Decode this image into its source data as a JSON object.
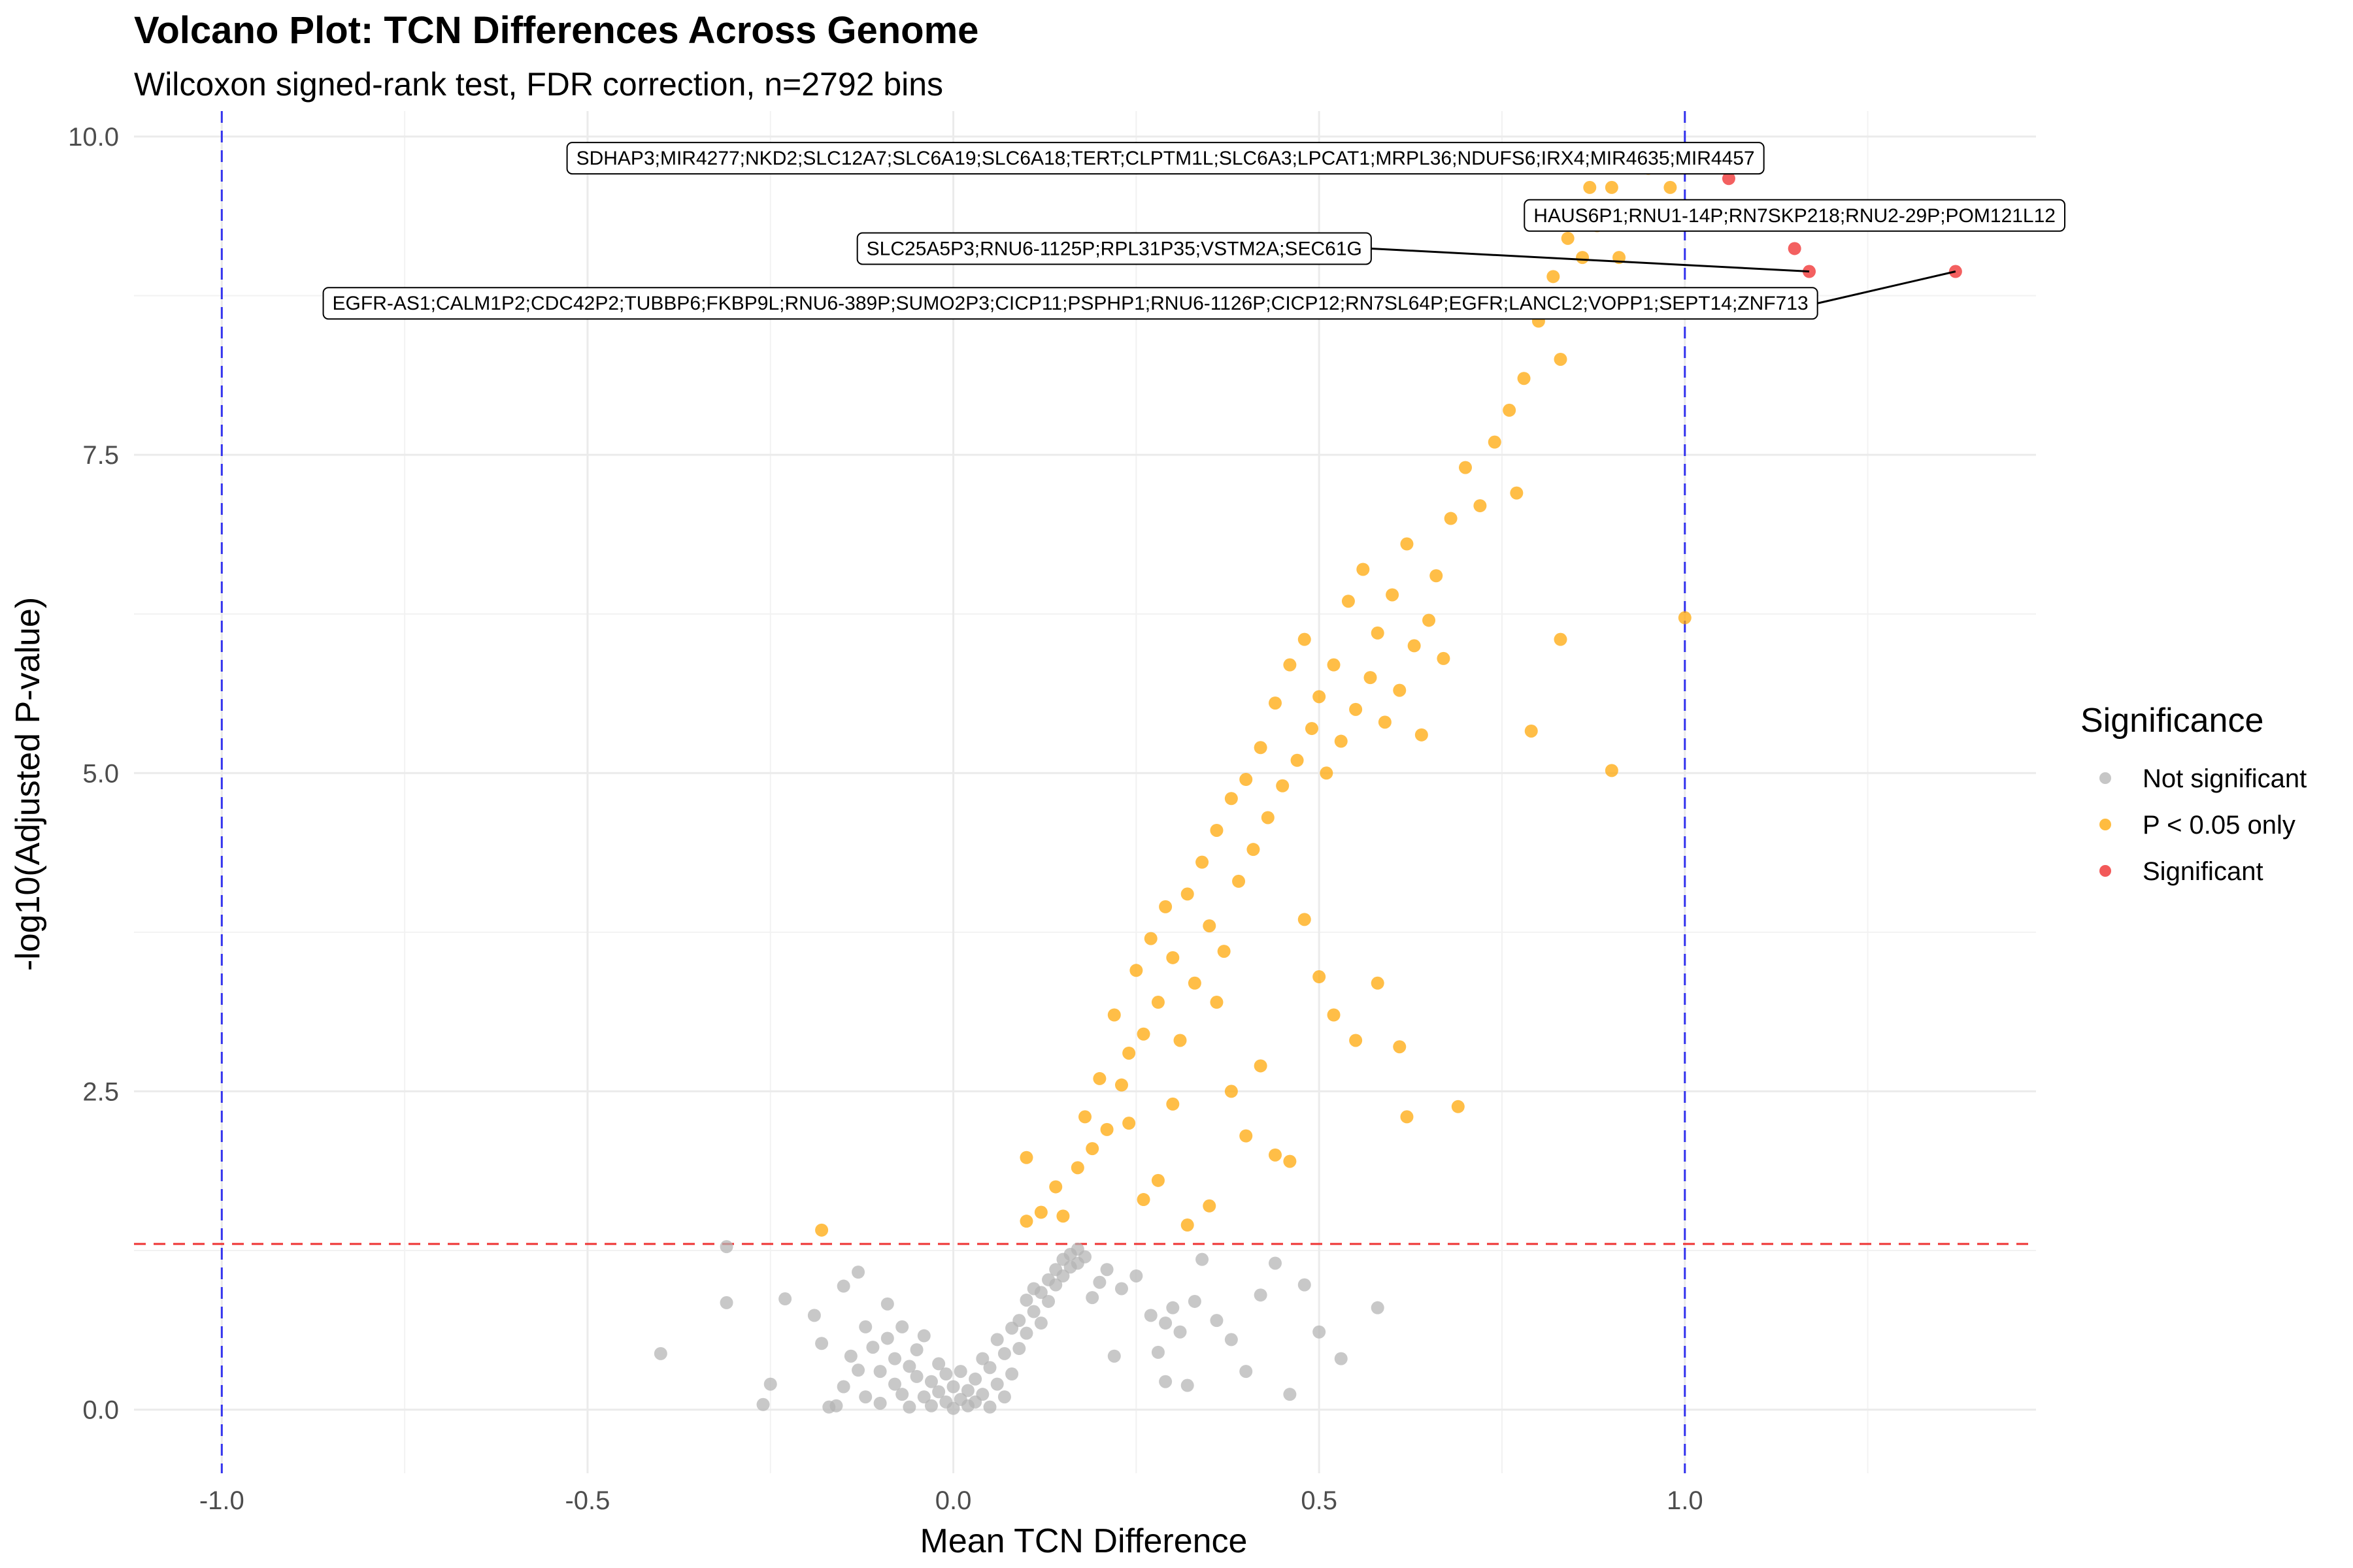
{
  "chart_data": {
    "type": "scatter",
    "title": "Volcano Plot: TCN Differences Across Genome",
    "subtitle": "Wilcoxon signed-rank test, FDR correction, n=2792 bins",
    "xlabel": "Mean TCN Difference",
    "ylabel": "-log10(Adjusted P-value)",
    "xlim": [
      -1.12,
      1.48
    ],
    "ylim": [
      -0.5,
      10.2
    ],
    "x_ticks": [
      "-1.0",
      "-0.5",
      "0.0",
      "0.5",
      "1.0"
    ],
    "x_tick_values": [
      -1.0,
      -0.5,
      0.0,
      0.5,
      1.0
    ],
    "y_ticks": [
      "0.0",
      "2.5",
      "5.0",
      "7.5",
      "10.0"
    ],
    "y_tick_values": [
      0,
      2.5,
      5.0,
      7.5,
      10.0
    ],
    "grid": true,
    "reference_lines": [
      {
        "axis": "x",
        "value": -1.0,
        "color": "#3333ee",
        "style": "dashed"
      },
      {
        "axis": "x",
        "value": 1.0,
        "color": "#3333ee",
        "style": "dashed"
      },
      {
        "axis": "y",
        "value": 1.30103,
        "color": "#ee3333",
        "style": "dashed"
      }
    ],
    "legend": {
      "title": "Significance",
      "placement": "right",
      "entries": [
        {
          "label": "Not significant",
          "color": "#b3b3b3"
        },
        {
          "label": "P < 0.05 only",
          "color": "#ffa500"
        },
        {
          "label": "Significant",
          "color": "#ee2222"
        }
      ]
    },
    "series": [
      {
        "name": "Not significant",
        "color": "#b3b3b3",
        "points": [
          [
            -0.4,
            0.44
          ],
          [
            -0.31,
            1.28
          ],
          [
            -0.31,
            0.84
          ],
          [
            -0.26,
            0.04
          ],
          [
            -0.25,
            0.2
          ],
          [
            -0.23,
            0.87
          ],
          [
            -0.19,
            0.74
          ],
          [
            -0.18,
            0.52
          ],
          [
            -0.17,
            0.02
          ],
          [
            -0.16,
            0.03
          ],
          [
            -0.15,
            0.18
          ],
          [
            -0.15,
            0.97
          ],
          [
            -0.14,
            0.42
          ],
          [
            -0.13,
            1.08
          ],
          [
            -0.13,
            0.31
          ],
          [
            -0.12,
            0.1
          ],
          [
            -0.12,
            0.65
          ],
          [
            -0.11,
            0.49
          ],
          [
            -0.1,
            0.05
          ],
          [
            -0.1,
            0.3
          ],
          [
            -0.09,
            0.83
          ],
          [
            -0.09,
            0.56
          ],
          [
            -0.08,
            0.2
          ],
          [
            -0.08,
            0.4
          ],
          [
            -0.07,
            0.12
          ],
          [
            -0.07,
            0.65
          ],
          [
            -0.06,
            0.34
          ],
          [
            -0.06,
            0.02
          ],
          [
            -0.05,
            0.26
          ],
          [
            -0.05,
            0.47
          ],
          [
            -0.04,
            0.1
          ],
          [
            -0.04,
            0.58
          ],
          [
            -0.03,
            0.22
          ],
          [
            -0.03,
            0.03
          ],
          [
            -0.02,
            0.36
          ],
          [
            -0.02,
            0.14
          ],
          [
            -0.01,
            0.06
          ],
          [
            -0.01,
            0.28
          ],
          [
            0.0,
            0.01
          ],
          [
            0.0,
            0.18
          ],
          [
            0.01,
            0.08
          ],
          [
            0.01,
            0.3
          ],
          [
            0.02,
            0.03
          ],
          [
            0.02,
            0.15
          ],
          [
            0.03,
            0.24
          ],
          [
            0.03,
            0.06
          ],
          [
            0.04,
            0.4
          ],
          [
            0.04,
            0.12
          ],
          [
            0.05,
            0.02
          ],
          [
            0.05,
            0.33
          ],
          [
            0.06,
            0.2
          ],
          [
            0.06,
            0.55
          ],
          [
            0.07,
            0.1
          ],
          [
            0.07,
            0.44
          ],
          [
            0.08,
            0.64
          ],
          [
            0.08,
            0.28
          ],
          [
            0.09,
            0.7
          ],
          [
            0.09,
            0.48
          ],
          [
            0.1,
            0.86
          ],
          [
            0.1,
            0.6
          ],
          [
            0.11,
            0.77
          ],
          [
            0.11,
            0.95
          ],
          [
            0.12,
            0.92
          ],
          [
            0.12,
            0.68
          ],
          [
            0.13,
            1.02
          ],
          [
            0.13,
            0.85
          ],
          [
            0.14,
            1.1
          ],
          [
            0.14,
            0.98
          ],
          [
            0.15,
            1.18
          ],
          [
            0.15,
            1.05
          ],
          [
            0.16,
            1.22
          ],
          [
            0.16,
            1.12
          ],
          [
            0.17,
            1.26
          ],
          [
            0.17,
            1.15
          ],
          [
            0.18,
            1.2
          ],
          [
            0.19,
            0.88
          ],
          [
            0.2,
            1.0
          ],
          [
            0.21,
            1.1
          ],
          [
            0.22,
            0.42
          ],
          [
            0.23,
            0.95
          ],
          [
            0.25,
            1.05
          ],
          [
            0.27,
            0.74
          ],
          [
            0.28,
            0.45
          ],
          [
            0.29,
            0.68
          ],
          [
            0.29,
            0.22
          ],
          [
            0.3,
            0.8
          ],
          [
            0.31,
            0.61
          ],
          [
            0.32,
            0.19
          ],
          [
            0.33,
            0.85
          ],
          [
            0.34,
            1.18
          ],
          [
            0.36,
            0.7
          ],
          [
            0.38,
            0.55
          ],
          [
            0.4,
            0.3
          ],
          [
            0.42,
            0.9
          ],
          [
            0.44,
            1.15
          ],
          [
            0.46,
            0.12
          ],
          [
            0.48,
            0.98
          ],
          [
            0.5,
            0.61
          ],
          [
            0.53,
            0.4
          ],
          [
            0.58,
            0.8
          ]
        ]
      },
      {
        "name": "P < 0.05 only",
        "color": "#ffa500",
        "points": [
          [
            -0.18,
            1.41
          ],
          [
            0.1,
            1.48
          ],
          [
            0.1,
            1.98
          ],
          [
            0.12,
            1.55
          ],
          [
            0.14,
            1.75
          ],
          [
            0.15,
            1.52
          ],
          [
            0.17,
            1.9
          ],
          [
            0.18,
            2.3
          ],
          [
            0.19,
            2.05
          ],
          [
            0.2,
            2.6
          ],
          [
            0.21,
            2.2
          ],
          [
            0.22,
            3.1
          ],
          [
            0.23,
            2.55
          ],
          [
            0.24,
            2.8
          ],
          [
            0.25,
            3.45
          ],
          [
            0.26,
            2.95
          ],
          [
            0.27,
            3.7
          ],
          [
            0.28,
            3.2
          ],
          [
            0.29,
            3.95
          ],
          [
            0.3,
            3.55
          ],
          [
            0.31,
            2.9
          ],
          [
            0.32,
            4.05
          ],
          [
            0.33,
            3.35
          ],
          [
            0.34,
            4.3
          ],
          [
            0.35,
            3.8
          ],
          [
            0.36,
            4.55
          ],
          [
            0.37,
            3.6
          ],
          [
            0.38,
            4.8
          ],
          [
            0.39,
            4.15
          ],
          [
            0.4,
            4.95
          ],
          [
            0.41,
            4.4
          ],
          [
            0.42,
            5.2
          ],
          [
            0.43,
            4.65
          ],
          [
            0.44,
            5.55
          ],
          [
            0.45,
            4.9
          ],
          [
            0.46,
            5.85
          ],
          [
            0.47,
            5.1
          ],
          [
            0.48,
            6.05
          ],
          [
            0.49,
            5.35
          ],
          [
            0.5,
            5.6
          ],
          [
            0.51,
            5.0
          ],
          [
            0.52,
            5.85
          ],
          [
            0.53,
            5.25
          ],
          [
            0.54,
            6.35
          ],
          [
            0.55,
            5.5
          ],
          [
            0.56,
            6.6
          ],
          [
            0.57,
            5.75
          ],
          [
            0.58,
            6.1
          ],
          [
            0.59,
            5.4
          ],
          [
            0.6,
            6.4
          ],
          [
            0.61,
            5.65
          ],
          [
            0.62,
            6.8
          ],
          [
            0.63,
            6.0
          ],
          [
            0.64,
            5.3
          ],
          [
            0.65,
            6.2
          ],
          [
            0.66,
            6.55
          ],
          [
            0.67,
            5.9
          ],
          [
            0.68,
            7.0
          ],
          [
            0.7,
            7.4
          ],
          [
            0.72,
            7.1
          ],
          [
            0.74,
            7.6
          ],
          [
            0.76,
            7.85
          ],
          [
            0.77,
            7.2
          ],
          [
            0.78,
            8.1
          ],
          [
            0.8,
            8.55
          ],
          [
            0.82,
            8.9
          ],
          [
            0.83,
            8.25
          ],
          [
            0.84,
            9.2
          ],
          [
            0.85,
            9.45
          ],
          [
            0.86,
            9.05
          ],
          [
            0.87,
            9.6
          ],
          [
            0.88,
            9.3
          ],
          [
            0.9,
            9.6
          ],
          [
            0.91,
            9.05
          ],
          [
            0.95,
            9.75
          ],
          [
            0.98,
            9.6
          ],
          [
            1.0,
            6.22
          ],
          [
            0.9,
            5.02
          ],
          [
            0.79,
            5.33
          ],
          [
            0.83,
            6.05
          ],
          [
            0.48,
            3.85
          ],
          [
            0.5,
            3.4
          ],
          [
            0.52,
            3.1
          ],
          [
            0.55,
            2.9
          ],
          [
            0.58,
            3.35
          ],
          [
            0.61,
            2.85
          ],
          [
            0.62,
            2.3
          ],
          [
            0.69,
            2.38
          ],
          [
            0.4,
            2.15
          ],
          [
            0.44,
            2.0
          ],
          [
            0.35,
            1.6
          ],
          [
            0.32,
            1.45
          ],
          [
            0.28,
            1.8
          ],
          [
            0.38,
            2.5
          ],
          [
            0.42,
            2.7
          ],
          [
            0.46,
            1.95
          ],
          [
            0.36,
            3.2
          ],
          [
            0.3,
            2.4
          ],
          [
            0.26,
            1.65
          ],
          [
            0.24,
            2.25
          ]
        ]
      },
      {
        "name": "Significant",
        "color": "#ee2222",
        "points": [
          [
            1.06,
            9.67
          ],
          [
            1.15,
            9.12
          ],
          [
            1.17,
            8.94
          ],
          [
            1.37,
            8.94
          ]
        ]
      }
    ],
    "annotations": [
      {
        "text": "SDHAP3;MIR4277;NKD2;SLC12A7;SLC6A19;SLC6A18;TERT;CLPTM1L;SLC6A3;LPCAT1;MRPL36;NDUFS6;IRX4;MIR4635;MIR4457",
        "x": 1.06,
        "y": 9.67,
        "label_x": 0.29,
        "label_y": 9.83
      },
      {
        "text": "HAUS6P1;RNU1-14P;RN7SKP218;RNU2-29P;POM121L12",
        "x": 1.15,
        "y": 9.12,
        "label_x": 1.15,
        "label_y": 9.38
      },
      {
        "text": "SLC25A5P3;RNU6-1125P;RPL31P35;VSTM2A;SEC61G",
        "x": 1.17,
        "y": 8.94,
        "label_x": 0.22,
        "label_y": 9.12
      },
      {
        "text": "EGFR-AS1;CALM1P2;CDC42P2;TUBBP6;FKBP9L;RNU6-389P;SUMO2P3;CICP11;PSPHP1;RNU6-1126P;CICP12;RN7SL64P;EGFR;LANCL2;VOPP1;SEPT14;ZNF713",
        "x": 1.37,
        "y": 8.94,
        "label_x": 0.16,
        "label_y": 8.69
      }
    ]
  }
}
